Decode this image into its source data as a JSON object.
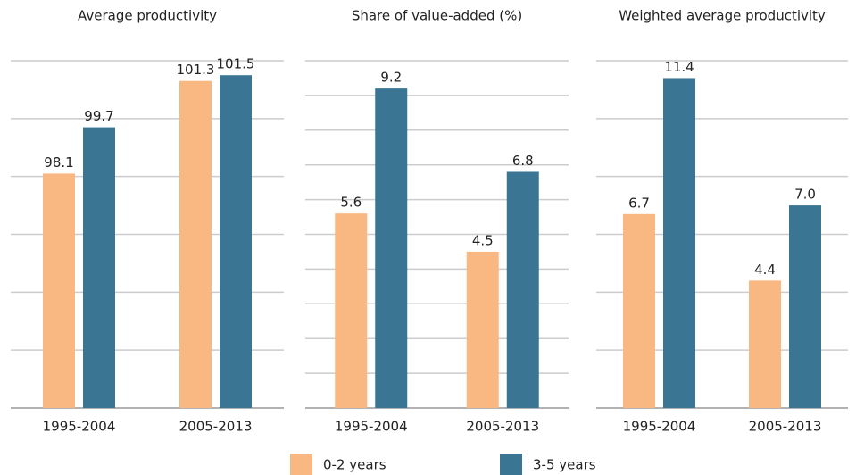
{
  "chart_data": [
    {
      "type": "bar",
      "title": "Average productivity",
      "categories": [
        "1995-2004",
        "2005-2013"
      ],
      "series": [
        {
          "name": "0-2 years",
          "color": "#f9b882",
          "values": [
            98.1,
            101.3
          ],
          "value_labels": [
            "98.1",
            "101.3"
          ]
        },
        {
          "name": "3-5 years",
          "color": "#3a7594",
          "values": [
            99.7,
            101.5
          ],
          "value_labels": [
            "99.7",
            "101.5"
          ]
        }
      ],
      "ylim": [
        90,
        102
      ],
      "yticks": [
        90,
        92,
        94,
        96,
        98,
        100,
        102
      ],
      "grid": true
    },
    {
      "type": "bar",
      "title": "Share of value-added (%)",
      "categories": [
        "1995-2004",
        "2005-2013"
      ],
      "series": [
        {
          "name": "0-2 years",
          "color": "#f9b882",
          "values": [
            5.6,
            4.5
          ],
          "value_labels": [
            "5.6",
            "4.5"
          ]
        },
        {
          "name": "3-5 years",
          "color": "#3a7594",
          "values": [
            9.2,
            6.8
          ],
          "value_labels": [
            "9.2",
            "6.8"
          ]
        }
      ],
      "ylim": [
        0,
        10
      ],
      "yticks": [
        0,
        1,
        2,
        3,
        4,
        5,
        6,
        7,
        8,
        9,
        10
      ],
      "grid": true
    },
    {
      "type": "bar",
      "title": "Weighted average productivity",
      "categories": [
        "1995-2004",
        "2005-2013"
      ],
      "series": [
        {
          "name": "0-2 years",
          "color": "#f9b882",
          "values": [
            6.7,
            4.4
          ],
          "value_labels": [
            "6.7",
            "4.4"
          ]
        },
        {
          "name": "3-5 years",
          "color": "#3a7594",
          "values": [
            11.4,
            7.0
          ],
          "value_labels": [
            "11.4",
            "7.0"
          ]
        }
      ],
      "ylim": [
        0,
        12
      ],
      "yticks": [
        0,
        2,
        4,
        6,
        8,
        10,
        12
      ],
      "grid": true
    }
  ]
}
